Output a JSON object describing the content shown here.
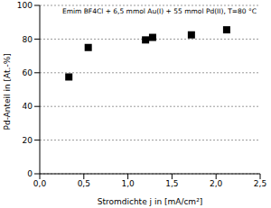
{
  "chart_data": {
    "type": "scatter",
    "title": "Emim BF4Cl + 6,5 mmol Au(I) + 55 mmol Pd(II), T=80 °C",
    "x_label": "Stromdichte j in [mA/cm²]",
    "y_label": "Pd-Anteil in [At.-%]",
    "x": [
      0.33,
      0.55,
      1.2,
      1.28,
      1.72,
      2.12
    ],
    "values": [
      57.5,
      75,
      79.5,
      81,
      82.5,
      85.5
    ],
    "color": "#000000",
    "marker": "square",
    "xlim": [
      0,
      2.5
    ],
    "xticks": [
      {
        "value": 0,
        "label": "0,0"
      },
      {
        "value": 0.5,
        "label": "0,5"
      },
      {
        "value": 1,
        "label": "1,0"
      },
      {
        "value": 1.5,
        "label": "1,5"
      },
      {
        "value": 2,
        "label": "2,0"
      },
      {
        "value": 2.5,
        "label": "2,5"
      }
    ],
    "ylim": [
      0,
      100
    ],
    "yticks": [
      0,
      20,
      40,
      60,
      80,
      100
    ],
    "grid": true
  }
}
